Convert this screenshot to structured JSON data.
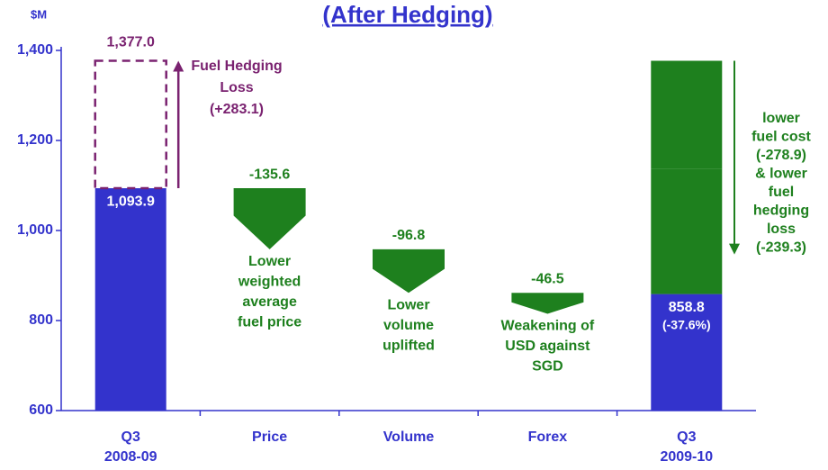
{
  "chart_data": {
    "type": "waterfall",
    "title": "(After Hedging)",
    "y_unit_label": "$M",
    "categories": [
      [
        "Q3",
        "2008-09"
      ],
      [
        "Price"
      ],
      [
        "Volume"
      ],
      [
        "Forex"
      ],
      [
        "Q3",
        "2009-10"
      ]
    ],
    "values": [
      1093.9,
      -135.6,
      -96.8,
      -46.5,
      858.8
    ],
    "value_labels": [
      "1,093.9",
      "-135.6",
      "-96.8",
      "-46.5",
      "858.8"
    ],
    "kinds": [
      "total",
      "step",
      "step",
      "step",
      "total"
    ],
    "annotations": [
      null,
      [
        "Lower",
        "weighted",
        "average",
        "fuel price"
      ],
      [
        "Lower",
        "volume",
        "uplifted"
      ],
      [
        "Weakening of",
        "USD against",
        "SGD"
      ],
      null
    ],
    "final_note": "(-37.6%)",
    "total_color": "#3333cc",
    "step_color": "#1e801e",
    "text_color": "#3333cc",
    "hedging": {
      "value": 283.1,
      "label": "(+283.1)",
      "lines": [
        "Fuel Hedging",
        "Loss"
      ],
      "total": 1377.0,
      "total_label": "1,377.0",
      "color": "#7a2270"
    },
    "final_reduction": {
      "values": [
        -278.9,
        -239.3
      ],
      "value_labels": [
        "(-278.9)",
        "(-239.3)"
      ],
      "lines": [
        [
          "lower",
          "fuel cost"
        ],
        [
          "& lower",
          "fuel",
          "hedging",
          "loss"
        ]
      ],
      "color": "#1e801e"
    },
    "ylim": [
      600,
      1400
    ],
    "yticks": [
      600,
      800,
      {
        "value": 1000,
        "label": "1,000"
      },
      {
        "value": 1200,
        "label": "1,200"
      },
      {
        "value": 1400,
        "label": "1,400"
      }
    ]
  }
}
